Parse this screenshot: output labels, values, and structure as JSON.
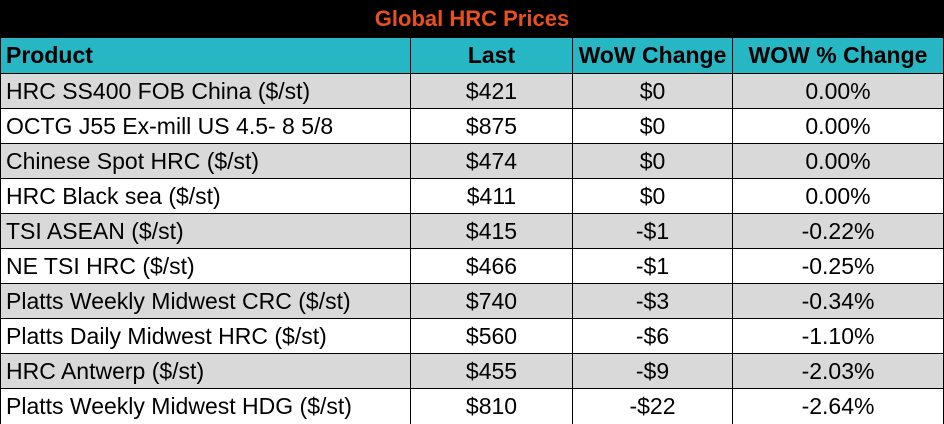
{
  "title": "Global HRC Prices",
  "headers": {
    "product": "Product",
    "last": "Last",
    "wow_change": "WoW Change",
    "wow_pct_change": "WOW % Change"
  },
  "rows": [
    {
      "product": "HRC SS400 FOB China ($/st)",
      "last": "$421",
      "wow_change": "$0",
      "wow_pct_change": "0.00%"
    },
    {
      "product": "OCTG J55 Ex-mill US 4.5- 8 5/8",
      "last": "$875",
      "wow_change": "$0",
      "wow_pct_change": "0.00%"
    },
    {
      "product": "Chinese Spot HRC ($/st)",
      "last": "$474",
      "wow_change": "$0",
      "wow_pct_change": "0.00%"
    },
    {
      "product": "HRC Black sea ($/st)",
      "last": "$411",
      "wow_change": "$0",
      "wow_pct_change": "0.00%"
    },
    {
      "product": "TSI ASEAN ($/st)",
      "last": "$415",
      "wow_change": "-$1",
      "wow_pct_change": "-0.22%"
    },
    {
      "product": "NE TSI HRC ($/st)",
      "last": "$466",
      "wow_change": "-$1",
      "wow_pct_change": "-0.25%"
    },
    {
      "product": "Platts Weekly Midwest CRC ($/st)",
      "last": "$740",
      "wow_change": "-$3",
      "wow_pct_change": "-0.34%"
    },
    {
      "product": "Platts Daily Midwest HRC ($/st)",
      "last": "$560",
      "wow_change": "-$6",
      "wow_pct_change": "-1.10%"
    },
    {
      "product": "HRC Antwerp ($/st)",
      "last": "$455",
      "wow_change": "-$9",
      "wow_pct_change": "-2.03%"
    },
    {
      "product": "Platts Weekly Midwest HDG ($/st)",
      "last": "$810",
      "wow_change": "-$22",
      "wow_pct_change": "-2.64%"
    }
  ],
  "colors": {
    "title_bg": "#000000",
    "title_text": "#e8501f",
    "header_bg": "#27b6c4",
    "shaded_row": "#d9d9d9",
    "plain_row": "#ffffff"
  }
}
